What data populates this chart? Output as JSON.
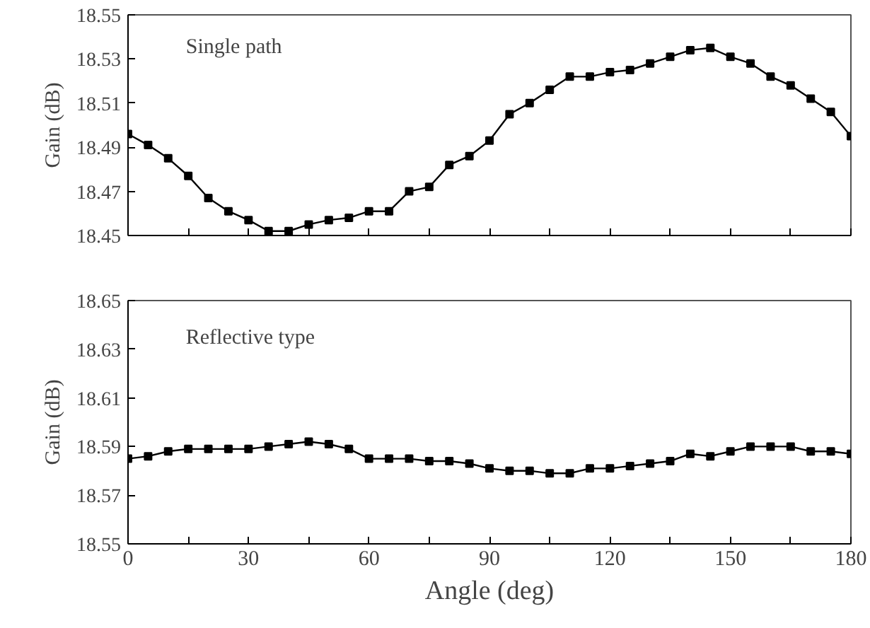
{
  "chart_data": [
    {
      "type": "line",
      "ylabel": "Gain (dB)",
      "annotations": [
        "Single path"
      ],
      "marker": "square",
      "line_style": "solid",
      "grid": false,
      "tick_labels": "y",
      "x": [
        0,
        5,
        10,
        15,
        20,
        25,
        30,
        35,
        40,
        45,
        50,
        55,
        60,
        65,
        70,
        75,
        80,
        85,
        90,
        95,
        100,
        105,
        110,
        115,
        120,
        125,
        130,
        135,
        140,
        145,
        150,
        155,
        160,
        165,
        170,
        175,
        180
      ],
      "series": [
        {
          "color": "#000000",
          "values": [
            18.496,
            18.491,
            18.485,
            18.477,
            18.467,
            18.461,
            18.457,
            18.452,
            18.452,
            18.455,
            18.457,
            18.458,
            18.461,
            18.461,
            18.47,
            18.472,
            18.482,
            18.486,
            18.493,
            18.505,
            18.51,
            18.516,
            18.522,
            18.522,
            18.524,
            18.525,
            18.528,
            18.531,
            18.534,
            18.535,
            18.531,
            18.528,
            18.522,
            18.518,
            18.512,
            18.506,
            18.495
          ]
        }
      ],
      "xlim": [
        0,
        180
      ],
      "xticks": [
        0,
        {
          "value": 15,
          "label": null
        },
        30,
        {
          "value": 45,
          "label": null
        },
        60,
        {
          "value": 75,
          "label": null
        },
        90,
        {
          "value": 105,
          "label": null
        },
        120,
        {
          "value": 135,
          "label": null
        },
        150,
        {
          "value": 165,
          "label": null
        },
        180
      ],
      "ylim": [
        18.45,
        18.55
      ],
      "yticks": [
        18.45,
        18.47,
        18.49,
        18.51,
        18.53,
        18.55
      ]
    },
    {
      "type": "line",
      "xlabel": "Angle (deg)",
      "ylabel": "Gain (dB)",
      "annotations": [
        "Reflective type"
      ],
      "marker": "square",
      "line_style": "solid",
      "grid": false,
      "x": [
        0,
        5,
        10,
        15,
        20,
        25,
        30,
        35,
        40,
        45,
        50,
        55,
        60,
        65,
        70,
        75,
        80,
        85,
        90,
        95,
        100,
        105,
        110,
        115,
        120,
        125,
        130,
        135,
        140,
        145,
        150,
        155,
        160,
        165,
        170,
        175,
        180
      ],
      "series": [
        {
          "color": "#000000",
          "values": [
            18.585,
            18.586,
            18.588,
            18.589,
            18.589,
            18.589,
            18.589,
            18.59,
            18.591,
            18.592,
            18.591,
            18.589,
            18.585,
            18.585,
            18.585,
            18.584,
            18.584,
            18.583,
            18.581,
            18.58,
            18.58,
            18.579,
            18.579,
            18.581,
            18.581,
            18.582,
            18.583,
            18.584,
            18.587,
            18.586,
            18.588,
            18.59,
            18.59,
            18.59,
            18.588,
            18.588,
            18.587
          ]
        }
      ],
      "xlim": [
        0,
        180
      ],
      "xticks": [
        0,
        {
          "value": 15,
          "label": null
        },
        30,
        {
          "value": 45,
          "label": null
        },
        60,
        {
          "value": 75,
          "label": null
        },
        90,
        {
          "value": 105,
          "label": null
        },
        120,
        {
          "value": 135,
          "label": null
        },
        150,
        {
          "value": 165,
          "label": null
        },
        180
      ],
      "ylim": [
        18.55,
        18.65
      ],
      "yticks": [
        18.55,
        18.57,
        18.59,
        18.61,
        18.63,
        18.65
      ]
    }
  ]
}
